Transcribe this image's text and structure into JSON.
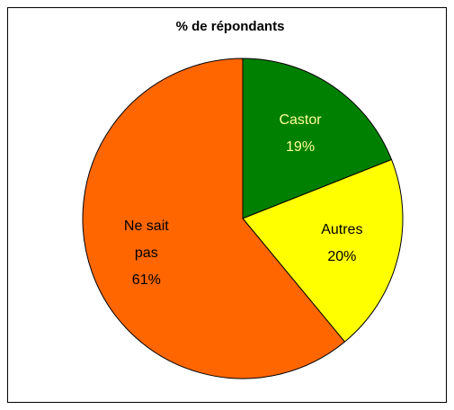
{
  "chart_data": {
    "type": "pie",
    "title": "% de répondants",
    "categories": [
      "Castor",
      "Autres",
      "Ne sait pas"
    ],
    "values": [
      19,
      20,
      61
    ],
    "value_labels": [
      "19%",
      "20%",
      "61%"
    ],
    "colors": [
      "#008000",
      "#ffff00",
      "#ff6600"
    ],
    "label_colors": [
      "#ffff99",
      "#000000",
      "#000000"
    ]
  }
}
